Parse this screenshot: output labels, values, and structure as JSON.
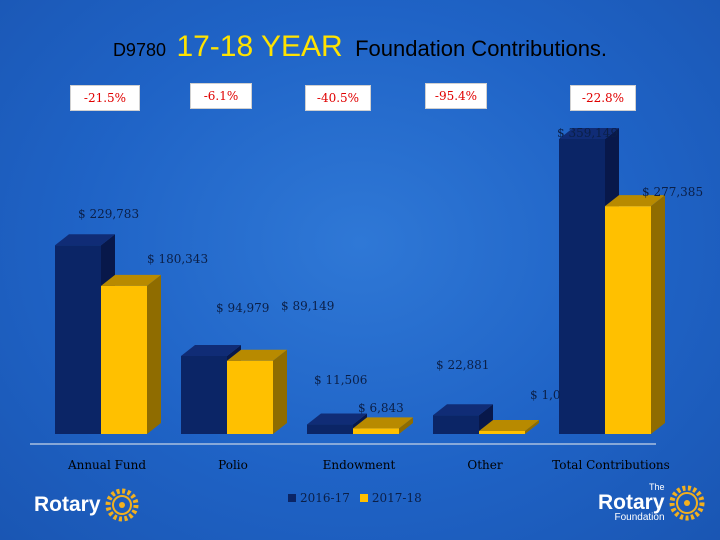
{
  "header": {
    "code": "D9780",
    "year": "17-18 YEAR",
    "subtitle": "Foundation Contributions."
  },
  "percent_badges": [
    "-21.5%",
    "-6.1%",
    "-40.5%",
    "-95.4%",
    "-22.8%"
  ],
  "value_labels": {
    "annual_fund": [
      "$ 229,783",
      ""
    ],
    "polio": [
      "$ 180,343",
      "$ 94,979"
    ],
    "endowment": [
      "$ 89,149",
      "$ 11,506",
      "$ 6,843"
    ],
    "other": [
      "$ 22,881",
      "$ 1,0"
    ],
    "total": [
      "$ 359,149",
      "$ 277,385"
    ]
  },
  "legend": [
    {
      "label": "2016-17",
      "color": "#0b2566"
    },
    {
      "label": "2017-18",
      "color": "#ffc000"
    }
  ],
  "branding": {
    "left_logo_text": "Rotary",
    "right_logo_the": "The",
    "right_logo_text": "Rotary",
    "right_logo_sub": "Foundation"
  },
  "chart_data": {
    "type": "bar",
    "categories": [
      "Annual Fund",
      "Polio",
      "Endowment",
      "Other",
      "Total Contributions"
    ],
    "series": [
      {
        "name": "2016-17",
        "values": [
          229783,
          94979,
          11506,
          22881,
          359149
        ]
      },
      {
        "name": "2017-18",
        "values": [
          180343,
          89149,
          6843,
          1050,
          277385
        ]
      }
    ],
    "ylim": [
      0,
      400000
    ],
    "grid": false,
    "legend_position": "bottom",
    "colors": {
      "series_1": "#0b2566",
      "series_2": "#ffc000"
    }
  }
}
